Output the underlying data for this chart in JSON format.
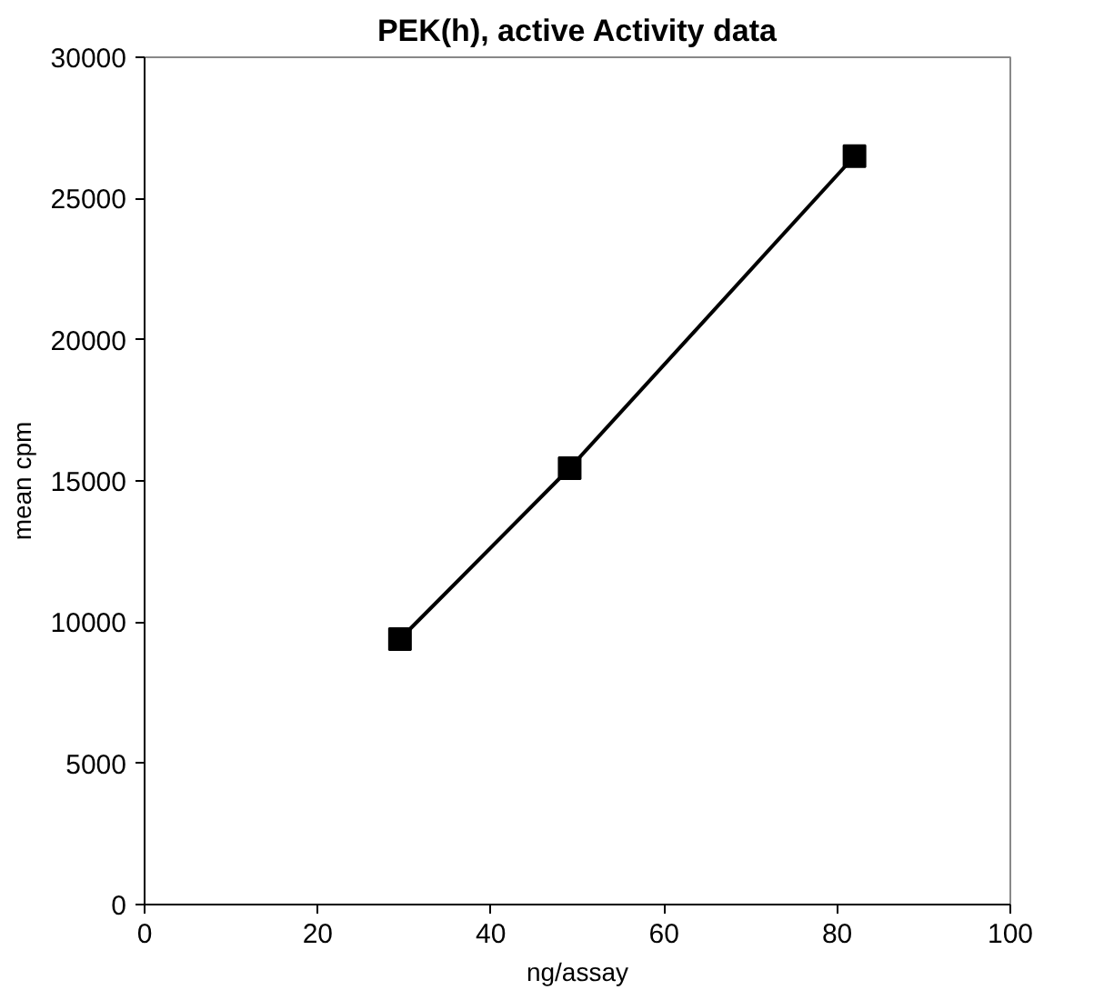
{
  "chart_data": {
    "type": "line",
    "title": "PEK(h), active Activity data",
    "xlabel": "ng/assay",
    "ylabel": "mean cpm",
    "x": [
      29.5,
      49.1,
      82.0
    ],
    "series": [
      {
        "color": "#000000",
        "values": [
          9400,
          15450,
          26500
        ]
      }
    ],
    "xlim": [
      0,
      100
    ],
    "xticks": [
      0,
      20,
      40,
      60,
      80,
      100
    ],
    "ylim": [
      0,
      30000
    ],
    "yticks": [
      0,
      5000,
      10000,
      15000,
      20000,
      25000,
      30000
    ],
    "grid": false,
    "marker": "square",
    "line_style": "solid"
  }
}
